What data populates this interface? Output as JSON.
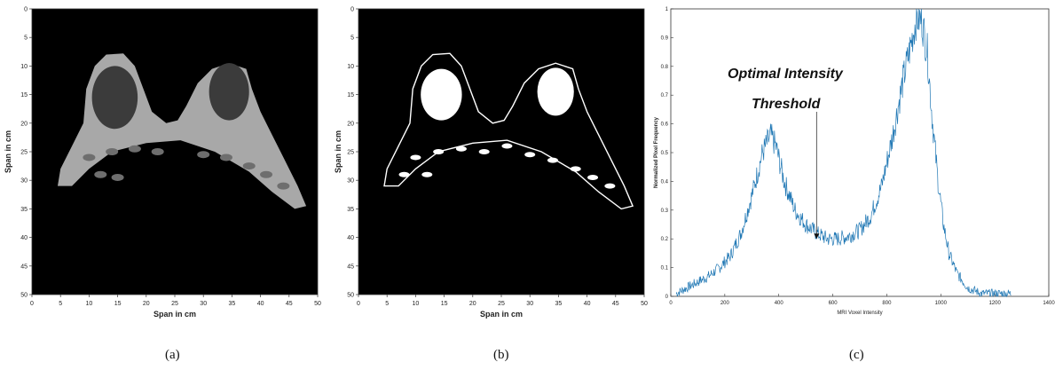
{
  "chart_data": [
    {
      "type": "image",
      "panel": "a",
      "xlabel": "Span in cm",
      "ylabel": "Span in cm",
      "xlim": [
        0,
        50
      ],
      "ylim": [
        0,
        50
      ],
      "y_inverted": true,
      "xticks": [
        0,
        5,
        10,
        15,
        20,
        25,
        30,
        35,
        40,
        45,
        50
      ],
      "yticks": [
        0,
        5,
        10,
        15,
        20,
        25,
        30,
        35,
        40,
        45,
        50
      ],
      "content": "grayscale axial breast MRI slice",
      "colors": {
        "background": "#000000",
        "tissue": "#a8a8a8"
      },
      "caption": "(a)"
    },
    {
      "type": "image",
      "panel": "b",
      "xlabel": "Span in cm",
      "ylabel": "Span in cm",
      "xlim": [
        0,
        50
      ],
      "ylim": [
        0,
        50
      ],
      "y_inverted": true,
      "xticks": [
        0,
        5,
        10,
        15,
        20,
        25,
        30,
        35,
        40,
        45,
        50
      ],
      "yticks": [
        0,
        5,
        10,
        15,
        20,
        25,
        30,
        35,
        40,
        45,
        50
      ],
      "content": "binary thresholded mask of the MRI slice",
      "colors": {
        "background": "#000000",
        "foreground": "#ffffff"
      },
      "caption": "(b)"
    },
    {
      "type": "line",
      "panel": "c",
      "xlabel": "MRI Voxel Intensity",
      "ylabel": "Normalized Pixel Frequency",
      "xlim": [
        0,
        1400
      ],
      "ylim": [
        0,
        1
      ],
      "xticks": [
        0,
        200,
        400,
        600,
        800,
        1000,
        1200,
        1400
      ],
      "yticks": [
        0,
        0.1,
        0.2,
        0.3,
        0.4,
        0.5,
        0.6,
        0.7,
        0.8,
        0.9,
        1
      ],
      "series_color": "#1f77b4",
      "x": [
        20,
        60,
        100,
        140,
        180,
        220,
        260,
        300,
        340,
        370,
        390,
        420,
        460,
        500,
        540,
        580,
        620,
        660,
        700,
        740,
        780,
        820,
        860,
        890,
        910,
        930,
        950,
        970,
        990,
        1010,
        1030,
        1060,
        1100,
        1150,
        1200,
        1260
      ],
      "y": [
        0.01,
        0.03,
        0.05,
        0.07,
        0.1,
        0.14,
        0.22,
        0.35,
        0.5,
        0.56,
        0.52,
        0.4,
        0.3,
        0.25,
        0.22,
        0.2,
        0.2,
        0.21,
        0.23,
        0.28,
        0.38,
        0.55,
        0.75,
        0.88,
        0.97,
        0.96,
        0.85,
        0.6,
        0.4,
        0.25,
        0.15,
        0.08,
        0.03,
        0.01,
        0.01,
        0.01
      ],
      "annotation": {
        "text_line1": "Optimal Intensity",
        "text_line2": "Threshold",
        "x": 540,
        "y": 0.2
      },
      "caption": "(c)"
    }
  ]
}
